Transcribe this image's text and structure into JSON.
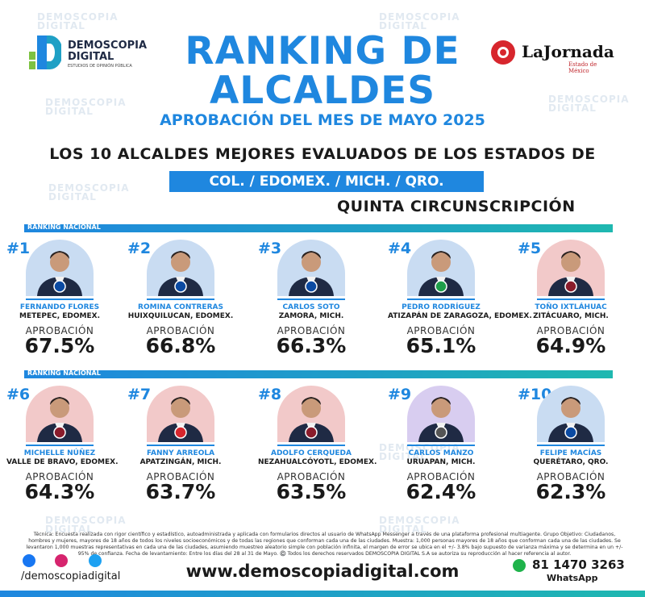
{
  "brand": {
    "name_line1": "DEMOSCOPIA",
    "name_line2": "DIGITAL",
    "tagline": "ESTUDIOS DE OPINIÓN PÚBLICA"
  },
  "partner": {
    "name": "LaJornada",
    "sub": "Estado de México"
  },
  "title": {
    "line1": "RANKING DE",
    "line2": "ALCALDES",
    "subtitle": "APROBACIÓN DEL MES DE MAYO 2025"
  },
  "description": "LOS 10 ALCALDES MEJORES EVALUADOS DE LOS ESTADOS DE",
  "states": "COL. /  EDOMEX.  /  MICH.  /  QRO.",
  "circumscription": "QUINTA CIRCUNSCRIPCIÓN",
  "ranking_label": "RANKING NACIONAL",
  "approval_label": "APROBACIÓN",
  "mayors": [
    {
      "rank": "#1",
      "name": "FERNANDO FLORES",
      "place": "METEPEC, EDOMEX.",
      "approval": "67.5%",
      "bg": "#c9dcf2",
      "party": "PAN"
    },
    {
      "rank": "#2",
      "name": "ROMINA CONTRERAS",
      "place": "HUIXQUILUCAN, EDOMEX.",
      "approval": "66.8%",
      "bg": "#c9dcf2",
      "party": "PAN"
    },
    {
      "rank": "#3",
      "name": "CARLOS SOTO",
      "place": "ZAMORA, MICH.",
      "approval": "66.3%",
      "bg": "#c9dcf2",
      "party": "PAN"
    },
    {
      "rank": "#4",
      "name": "PEDRO RODRÍGUEZ",
      "place": "ATIZAPÁN DE ZARAGOZA, EDOMEX.",
      "approval": "65.1%",
      "bg": "#c9dcf2",
      "party": "PRI"
    },
    {
      "rank": "#5",
      "name": "TOÑO IXTLÁHUAC",
      "place": "ZITÁCUARO, MICH.",
      "approval": "64.9%",
      "bg": "#f2c9c9",
      "party": "MORENA"
    },
    {
      "rank": "#6",
      "name": "MICHELLE NÚÑEZ",
      "place": "VALLE DE BRAVO, EDOMEX.",
      "approval": "64.3%",
      "bg": "#f2c9c9",
      "party": "MORENA"
    },
    {
      "rank": "#7",
      "name": "FANNY ARREOLA",
      "place": "APATZINGÁN, MICH.",
      "approval": "63.7%",
      "bg": "#f2c9c9",
      "party": "PT"
    },
    {
      "rank": "#8",
      "name": "ADOLFO CERQUEDA",
      "place": "NEZAHUALCÓYOTL, EDOMEX.",
      "approval": "63.5%",
      "bg": "#f2c9c9",
      "party": "MORENA"
    },
    {
      "rank": "#9",
      "name": "CARLOS MANZO",
      "place": "URUAPAN, MICH.",
      "approval": "62.4%",
      "bg": "#d8cdf0",
      "party": "IND"
    },
    {
      "rank": "#10",
      "name": "FELIPE MACÍAS",
      "place": "QUERÉTARO, QRO.",
      "approval": "62.3%",
      "bg": "#c9dcf2",
      "party": "PAN"
    }
  ],
  "footer": {
    "technical_note": "Técnica: Encuesta realizada con rigor científico y estadístico, autoadministrada y aplicada con formularios directos al usuario de WhatsApp Messenger a través de una plataforma profesional multiagente. Grupo Objetivo: Ciudadanos, hombres y mujeres, mayores de 18 años de todos los niveles socioeconómicos y de todas las regiones que conforman cada una de las ciudades. Muestra: 1,000 personas mayores de 18 años que conforman cada una de las ciudades. Se levantaron 1,000 muestras representativas en cada una de las ciudades, asumiendo muestreo aleatorio simple con población infinita, el margen de error se ubica en el +/- 3.8% bajo supuesto de varianza máxima y se determina en un +/- 95% de confianza. Fecha de levantamiento: Entre los días del 28 al 31 de Mayo. ©️ Todos los derechos reservados DEMOSCOPIA DIGITAL S.A se autoriza su reproducción al hacer referencia al autor.",
    "handle": "/demoscopiadigital",
    "website": "www.demoscopiadigital.com",
    "phone": "81 1470 3263",
    "whatsapp": "WhatsApp"
  },
  "colors": {
    "accent": "#1f87df",
    "teal": "#1fb8b0"
  }
}
